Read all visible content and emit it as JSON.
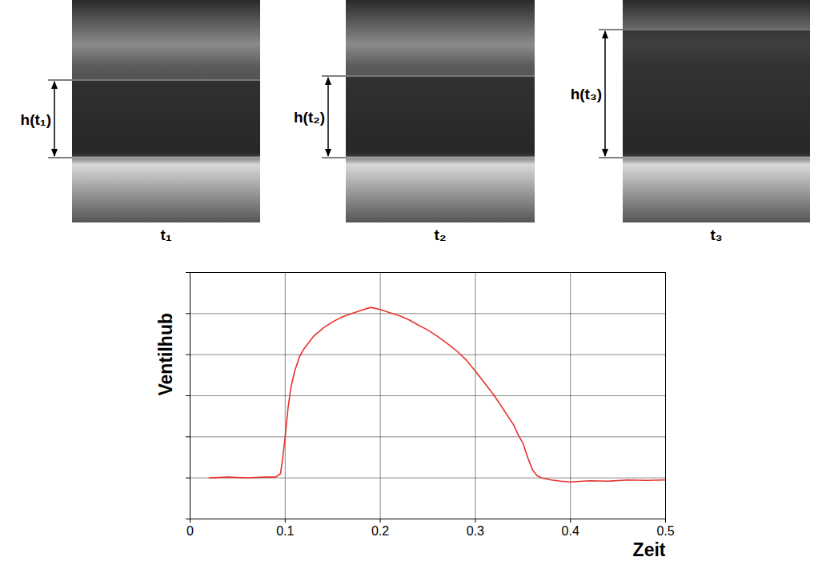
{
  "chart_data": {
    "type": "line",
    "x_label": "Zeit",
    "y_label": "Ventilhub",
    "x": [
      0.02,
      0.04,
      0.06,
      0.08,
      0.09,
      0.095,
      0.097,
      0.1,
      0.103,
      0.106,
      0.11,
      0.115,
      0.12,
      0.13,
      0.14,
      0.15,
      0.16,
      0.17,
      0.18,
      0.19,
      0.2,
      0.21,
      0.22,
      0.23,
      0.24,
      0.25,
      0.26,
      0.27,
      0.28,
      0.29,
      0.3,
      0.31,
      0.32,
      0.33,
      0.34,
      0.345,
      0.35,
      0.355,
      0.36,
      0.365,
      0.37,
      0.38,
      0.39,
      0.4,
      0.42,
      0.44,
      0.46,
      0.48,
      0.5
    ],
    "series": [
      {
        "name": "Ventilhub",
        "color": "#e8322d",
        "values": [
          0.0,
          0.02,
          0.0,
          0.02,
          0.02,
          0.1,
          0.4,
          1.0,
          1.7,
          2.2,
          2.6,
          2.95,
          3.15,
          3.45,
          3.65,
          3.8,
          3.92,
          4.0,
          4.08,
          4.15,
          4.1,
          4.02,
          3.95,
          3.85,
          3.72,
          3.6,
          3.45,
          3.28,
          3.1,
          2.88,
          2.6,
          2.3,
          2.0,
          1.65,
          1.3,
          1.05,
          0.85,
          0.5,
          0.2,
          0.05,
          0.0,
          -0.05,
          -0.08,
          -0.1,
          -0.07,
          -0.08,
          -0.05,
          -0.06,
          -0.05
        ]
      }
    ],
    "xlim": [
      0,
      0.5
    ],
    "xticks": [
      0,
      0.1,
      0.2,
      0.3,
      0.4,
      0.5
    ],
    "ylim": [
      -1,
      5
    ],
    "yticks": [
      -1,
      0,
      1,
      2,
      3,
      4,
      5
    ],
    "grid": true,
    "tick_labels": "x"
  },
  "images": [
    {
      "caption": "t₁",
      "annotation": "h(t₁)"
    },
    {
      "caption": "t₂",
      "annotation": "h(t₂)"
    },
    {
      "caption": "t₃",
      "annotation": "h(t₃)"
    }
  ]
}
